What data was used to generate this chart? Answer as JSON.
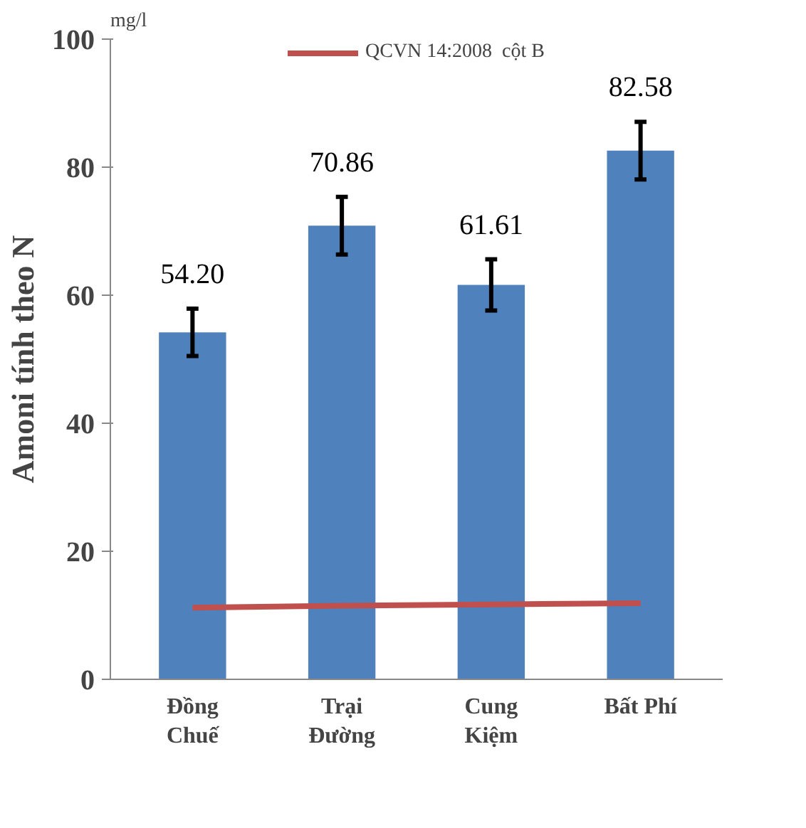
{
  "chart_data": {
    "type": "bar",
    "categories": [
      "Đồng\nChuế",
      "Trại\nĐường",
      "Cung\nKiệm",
      "Bất Phí"
    ],
    "ylabel": "Amoni tính theo N",
    "annotations": [
      "mg/l"
    ],
    "ylim": [
      0,
      100
    ],
    "yticks": [
      0,
      20,
      40,
      60,
      80,
      100
    ],
    "grid": false,
    "legend": "top",
    "series": [
      {
        "color": "#4f81bd",
        "values": [
          54.2,
          70.86,
          61.61,
          82.58
        ],
        "errors": [
          3.7,
          4.5,
          4.0,
          4.5
        ],
        "value_labels": [
          "54.20",
          "70.86",
          "61.61",
          "82.58"
        ]
      },
      {
        "type": "line",
        "name": "QCVN 14:2008  cột B",
        "color": "#c0504d",
        "values": [
          11.2,
          11.5,
          11.7,
          11.9
        ]
      }
    ]
  }
}
